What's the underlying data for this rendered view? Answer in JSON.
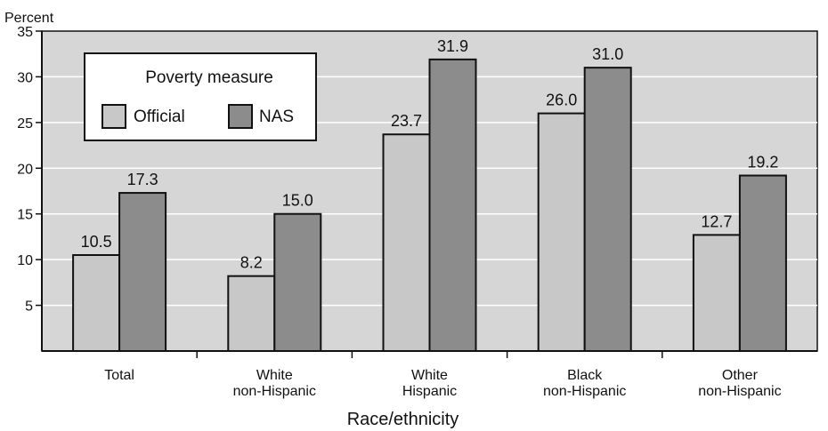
{
  "chart_data": {
    "type": "bar",
    "ylabel": "Percent",
    "xlabel": "Race/ethnicity",
    "ylim": [
      0,
      35
    ],
    "yticks": [
      5,
      10,
      15,
      20,
      25,
      30,
      35
    ],
    "grid": true,
    "legend": {
      "title": "Poverty measure",
      "placement": "top-left"
    },
    "categories": [
      [
        "Total"
      ],
      [
        "White",
        "non-Hispanic"
      ],
      [
        "White",
        "Hispanic"
      ],
      [
        "Black",
        "non-Hispanic"
      ],
      [
        "Other",
        "non-Hispanic"
      ]
    ],
    "series": [
      {
        "name": "Official",
        "color": "#c8c8c8",
        "values": [
          10.5,
          8.2,
          23.7,
          26.0,
          12.7
        ],
        "labels": [
          "10.5",
          "8.2",
          "23.7",
          "26.0",
          "12.7"
        ]
      },
      {
        "name": "NAS",
        "color": "#8c8c8c",
        "values": [
          17.3,
          15.0,
          31.9,
          31.0,
          19.2
        ],
        "labels": [
          "17.3",
          "15.0",
          "31.9",
          "31.0",
          "19.2"
        ]
      }
    ],
    "colors": {
      "plot_background": "#d6d6d6",
      "gridline": "#ffffff",
      "outline": "#111111"
    }
  }
}
